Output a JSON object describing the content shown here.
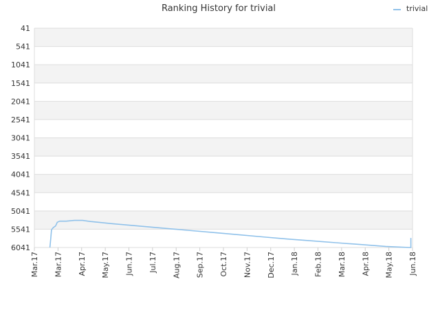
{
  "chart_data": {
    "type": "line",
    "title": "Ranking History for trivial",
    "xlabel": "",
    "ylabel": "",
    "y_inverted": true,
    "ylim": [
      41,
      6041
    ],
    "y_ticks": [
      41,
      541,
      1041,
      1541,
      2041,
      2541,
      3041,
      3541,
      4041,
      4541,
      5041,
      5541,
      6041
    ],
    "x_ticks": [
      "Mar.17",
      "Mar.17",
      "Apr.17",
      "May.17",
      "Jun.17",
      "Jul.17",
      "Aug.17",
      "Sep.17",
      "Oct.17",
      "Nov.17",
      "Dec.17",
      "Jan.18",
      "Feb.18",
      "Mar.18",
      "Apr.18",
      "May.18",
      "Jun.18"
    ],
    "grid": true,
    "legend": "top-right",
    "series": [
      {
        "name": "trivial",
        "color": "#8fc1ea",
        "x_dates": [
          "2017-03-16",
          "2017-03-17",
          "2017-03-18",
          "2017-03-20",
          "2017-03-23",
          "2017-03-25",
          "2017-03-28",
          "2017-04-05",
          "2017-04-15",
          "2017-04-25",
          "2017-05-05",
          "2017-06-01",
          "2017-07-01",
          "2017-08-01",
          "2017-09-01",
          "2017-10-01",
          "2017-11-01",
          "2017-12-01",
          "2018-01-01",
          "2018-02-01",
          "2018-03-01",
          "2018-04-01",
          "2018-05-01",
          "2018-05-31",
          "2018-06-01",
          "2018-06-01"
        ],
        "values": [
          6041,
          5800,
          5560,
          5500,
          5450,
          5350,
          5320,
          5320,
          5300,
          5300,
          5330,
          5390,
          5450,
          5510,
          5570,
          5630,
          5690,
          5750,
          5810,
          5860,
          5910,
          5960,
          6010,
          6041,
          6041,
          5780
        ]
      }
    ],
    "background": "#ffffff",
    "band_color": "#f3f3f3",
    "grid_color": "#dddddd"
  }
}
